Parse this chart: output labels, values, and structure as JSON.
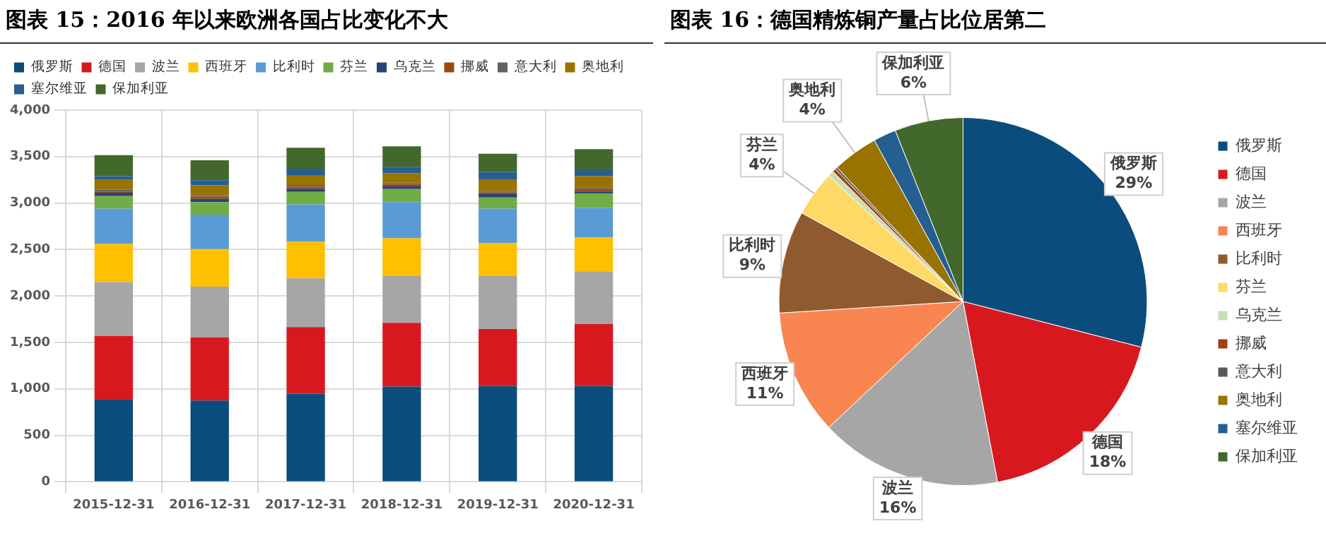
{
  "chart_data": [
    {
      "type": "bar",
      "title": "图表 15：2016 年以来欧洲各国占比变化不大",
      "stacked": true,
      "grid": true,
      "legend": "top",
      "categories": [
        "2015-12-31",
        "2016-12-31",
        "2017-12-31",
        "2018-12-31",
        "2019-12-31",
        "2020-12-31"
      ],
      "ylim": [
        0,
        4000
      ],
      "yticks": [
        0,
        {
          "value": 500,
          "label": "500"
        },
        {
          "value": 1000,
          "label": "1,000"
        },
        {
          "value": 1500,
          "label": "1,500"
        },
        {
          "value": 2000,
          "label": "2,000"
        },
        {
          "value": 2500,
          "label": "2,500"
        },
        {
          "value": 3000,
          "label": "3,000"
        },
        {
          "value": 3500,
          "label": "3,500"
        },
        {
          "value": 4000,
          "label": "4,000"
        }
      ],
      "series": [
        {
          "name": "俄罗斯",
          "color": "#0a4d7d",
          "values": [
            885,
            875,
            950,
            1025,
            1030,
            1030
          ]
        },
        {
          "name": "德国",
          "color": "#d7191f",
          "values": [
            685,
            680,
            715,
            685,
            615,
            670
          ]
        },
        {
          "name": "波兰",
          "color": "#a6a6a6",
          "values": [
            580,
            545,
            525,
            505,
            570,
            565
          ]
        },
        {
          "name": "西班牙",
          "color": "#ffc000",
          "values": [
            410,
            405,
            395,
            405,
            355,
            365
          ]
        },
        {
          "name": "比利时",
          "color": "#5b9bd5",
          "values": [
            380,
            370,
            400,
            390,
            370,
            320
          ]
        },
        {
          "name": "芬兰",
          "color": "#70ad47",
          "values": [
            135,
            135,
            135,
            140,
            120,
            150
          ]
        },
        {
          "name": "乌克兰",
          "color": "#264478",
          "values": [
            35,
            35,
            35,
            30,
            35,
            25
          ]
        },
        {
          "name": "挪威",
          "color": "#9e480e",
          "values": [
            15,
            25,
            20,
            25,
            20,
            25
          ]
        },
        {
          "name": "意大利",
          "color": "#636363",
          "values": [
            20,
            15,
            20,
            15,
            15,
            20
          ]
        },
        {
          "name": "奥地利",
          "color": "#997300",
          "values": [
            105,
            105,
            105,
            100,
            120,
            120
          ]
        },
        {
          "name": "塞尔维亚",
          "color": "#255e91",
          "values": [
            40,
            55,
            70,
            70,
            85,
            65
          ]
        },
        {
          "name": "保加利亚",
          "color": "#43682b",
          "values": [
            225,
            215,
            225,
            220,
            195,
            225
          ]
        }
      ]
    },
    {
      "type": "pie",
      "title": "图表 16：德国精炼铜产量占比位居第二",
      "legend": "right",
      "categories": [
        "俄罗斯",
        "德国",
        "波兰",
        "西班牙",
        "比利时",
        "芬兰",
        "乌克兰",
        "挪威",
        "意大利",
        "奥地利",
        "塞尔维亚",
        "保加利亚"
      ],
      "values": [
        29,
        18,
        16,
        11,
        9,
        4,
        0.5,
        0.3,
        0.2,
        4,
        2,
        6
      ],
      "value_labels": [
        "29%",
        "18%",
        "16%",
        "11%",
        "9%",
        "4%",
        null,
        null,
        null,
        "4%",
        null,
        "6%"
      ],
      "colors": [
        "#0a4d7d",
        "#d7191f",
        "#a6a6a6",
        "#f98550",
        "#8f5a2e",
        "#ffd966",
        "#c5e0b4",
        "#a0410f",
        "#595959",
        "#997300",
        "#255e91",
        "#43682b"
      ]
    }
  ]
}
